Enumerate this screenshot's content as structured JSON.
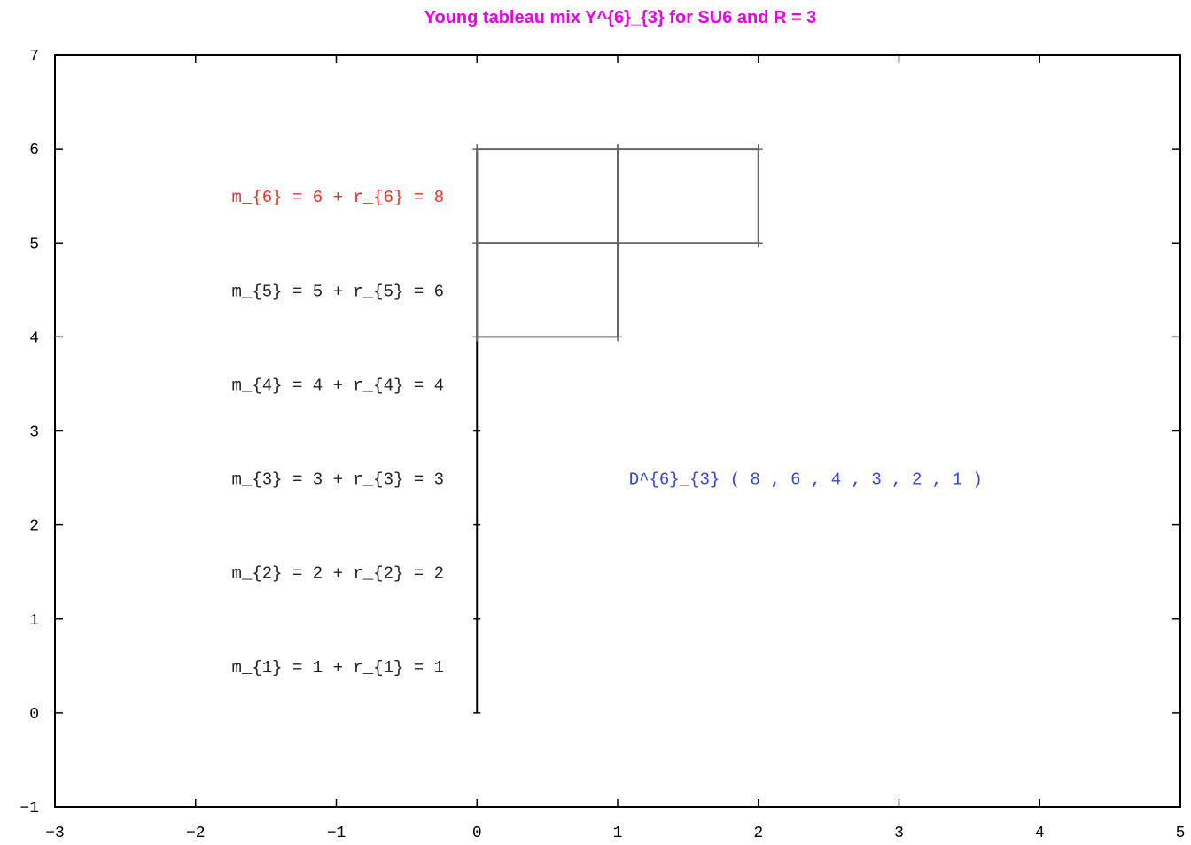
{
  "title": "Young tableau mix Y^{6}_{3} for SU6 and R = 3",
  "colors": {
    "title": "#e600e6",
    "highlight": "#e8322c",
    "normal": "#222222",
    "label": "#3344dd",
    "grid": "#666666",
    "axis": "#000000"
  },
  "axes": {
    "xlim": [
      -3,
      5
    ],
    "ylim": [
      -1,
      7
    ],
    "xticks": [
      -3,
      -2,
      -1,
      0,
      1,
      2,
      3,
      4,
      5
    ],
    "yticks": [
      -1,
      0,
      1,
      2,
      3,
      4,
      5,
      6,
      7
    ],
    "xtick_labels": [
      "−3",
      "−2",
      "−1",
      "0",
      "1",
      "2",
      "3",
      "4",
      "5"
    ],
    "ytick_labels": [
      "−1",
      "0",
      "1",
      "2",
      "3",
      "4",
      "5",
      "6",
      "7"
    ]
  },
  "equations": [
    {
      "y": 5.5,
      "text": "m_{6} = 6 + r_{6} = 8",
      "highlight": true
    },
    {
      "y": 4.5,
      "text": "m_{5} = 5 + r_{5} = 6",
      "highlight": false
    },
    {
      "y": 3.5,
      "text": "m_{4} = 4 + r_{4} = 4",
      "highlight": false
    },
    {
      "y": 2.5,
      "text": "m_{3} = 3 + r_{3} = 3",
      "highlight": false
    },
    {
      "y": 1.5,
      "text": "m_{2} = 2 + r_{2} = 2",
      "highlight": false
    },
    {
      "y": 0.5,
      "text": "m_{1} = 1 + r_{1} = 1",
      "highlight": false
    }
  ],
  "tableau": {
    "rows": [
      {
        "y_top": 6,
        "y_bottom": 5,
        "boxes": 2
      },
      {
        "y_top": 5,
        "y_bottom": 4,
        "boxes": 1
      }
    ],
    "stem": {
      "x": 0,
      "y_from": 0,
      "y_to": 6,
      "tick_ys": [
        0,
        1,
        2,
        3
      ]
    }
  },
  "dimension_label": {
    "x": 1.08,
    "y": 2.5,
    "text": "D^{6}_{3} ( 8 , 6 , 4 , 3 , 2 , 1  )"
  }
}
